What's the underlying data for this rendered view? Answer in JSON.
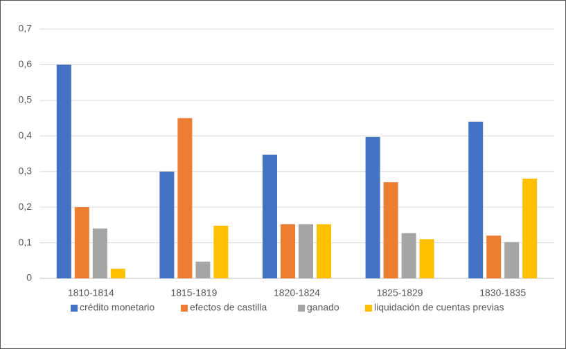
{
  "chart_data": {
    "type": "bar",
    "categories": [
      "1810-1814",
      "1815-1819",
      "1820-1824",
      "1825-1829",
      "1830-1835"
    ],
    "series": [
      {
        "name": "crédito monetario",
        "color": "#4472c4",
        "values": [
          0.6,
          0.3,
          0.347,
          0.397,
          0.44
        ]
      },
      {
        "name": "efectos de castilla",
        "color": "#ed7d31",
        "values": [
          0.2,
          0.45,
          0.152,
          0.27,
          0.12
        ]
      },
      {
        "name": "ganado",
        "color": "#a5a5a5",
        "values": [
          0.14,
          0.047,
          0.152,
          0.127,
          0.102
        ]
      },
      {
        "name": "liquidación de cuentas previas",
        "color": "#ffc000",
        "values": [
          0.027,
          0.148,
          0.152,
          0.11,
          0.28
        ]
      }
    ],
    "ylim": [
      0,
      0.7
    ],
    "yticks": [
      0,
      {
        "value": 0.1,
        "label": "0,1"
      },
      {
        "value": 0.2,
        "label": "0,2"
      },
      {
        "value": 0.3,
        "label": "0,3"
      },
      {
        "value": 0.4,
        "label": "0,4"
      },
      {
        "value": 0.5,
        "label": "0,5"
      },
      {
        "value": 0.6,
        "label": "0,6"
      },
      {
        "value": 0.7,
        "label": "0,7"
      }
    ],
    "grid": true,
    "legend": "bottom"
  }
}
